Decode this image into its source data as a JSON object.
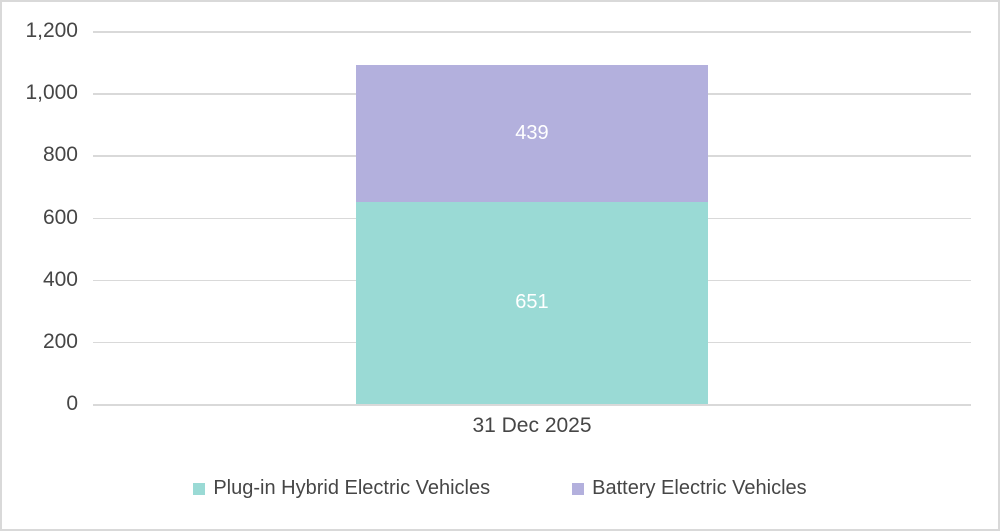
{
  "chart_data": {
    "type": "bar",
    "stacked": true,
    "title": "",
    "xlabel": "",
    "ylabel": "",
    "categories": [
      "31 Dec 2025"
    ],
    "series": [
      {
        "name": "Plug-in Hybrid Electric Vehicles",
        "values": [
          651
        ],
        "color": "#9ADAD5"
      },
      {
        "name": "Battery Electric Vehicles",
        "values": [
          439
        ],
        "color": "#B3B0DD"
      }
    ],
    "stack_total": 1090,
    "ylim": [
      0,
      1200
    ],
    "yticks": [
      0,
      200,
      400,
      600,
      800,
      1000,
      1200
    ],
    "ytick_labels": [
      "0",
      "200",
      "400",
      "600",
      "800",
      "1,000",
      "1,200"
    ],
    "grid": true,
    "legend_position": "bottom",
    "data_labels": [
      651,
      439
    ]
  },
  "colors": {
    "grid": "#D9D9D9",
    "frame_border": "#D9D9D9",
    "axis_text": "#464646",
    "data_label_text": "#FFFFFF",
    "background": "#FFFFFF"
  }
}
